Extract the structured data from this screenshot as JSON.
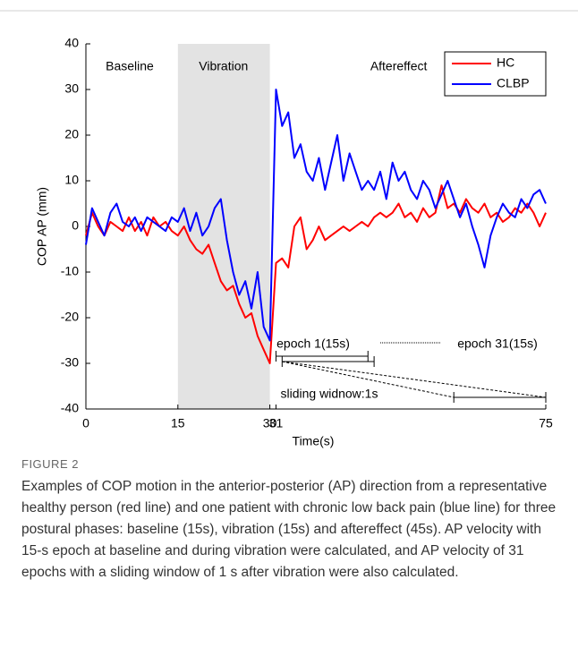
{
  "chart_data": {
    "type": "line",
    "x": [
      0,
      1,
      2,
      3,
      4,
      5,
      6,
      7,
      8,
      9,
      10,
      11,
      12,
      13,
      14,
      15,
      16,
      17,
      18,
      19,
      20,
      21,
      22,
      23,
      24,
      25,
      26,
      27,
      28,
      29,
      30,
      31,
      32,
      33,
      34,
      35,
      36,
      37,
      38,
      39,
      40,
      41,
      42,
      43,
      44,
      45,
      46,
      47,
      48,
      49,
      50,
      51,
      52,
      53,
      54,
      55,
      56,
      57,
      58,
      59,
      60,
      61,
      62,
      63,
      64,
      65,
      66,
      67,
      68,
      69,
      70,
      71,
      72,
      73,
      74,
      75
    ],
    "series": [
      {
        "name": "HC",
        "color": "#ff0000",
        "values": [
          -2,
          3,
          0,
          -2,
          1,
          0,
          -1,
          2,
          -1,
          1,
          -2,
          2,
          0,
          1,
          -1,
          -2,
          0,
          -3,
          -5,
          -6,
          -4,
          -8,
          -12,
          -14,
          -13,
          -17,
          -20,
          -19,
          -24,
          -27,
          -30,
          -8,
          -7,
          -9,
          0,
          2,
          -5,
          -3,
          0,
          -3,
          -2,
          -1,
          0,
          -1,
          0,
          1,
          0,
          2,
          3,
          2,
          3,
          5,
          2,
          3,
          1,
          4,
          2,
          3,
          9,
          4,
          5,
          3,
          6,
          4,
          3,
          5,
          2,
          3,
          1,
          2,
          4,
          3,
          5,
          3,
          0,
          3
        ]
      },
      {
        "name": "CLBP",
        "color": "#0000ff",
        "values": [
          -4,
          4,
          1,
          -2,
          3,
          5,
          1,
          0,
          2,
          -1,
          2,
          1,
          0,
          -1,
          2,
          1,
          4,
          -1,
          3,
          -2,
          0,
          4,
          6,
          -3,
          -10,
          -15,
          -12,
          -18,
          -10,
          -22,
          -25,
          30,
          22,
          25,
          15,
          18,
          12,
          10,
          15,
          8,
          14,
          20,
          10,
          16,
          12,
          8,
          10,
          8,
          12,
          6,
          14,
          10,
          12,
          8,
          6,
          10,
          8,
          4,
          7,
          10,
          6,
          2,
          5,
          0,
          -4,
          -9,
          -2,
          2,
          5,
          3,
          2,
          6,
          4,
          7,
          8,
          5
        ]
      }
    ],
    "xlabel": "Time(s)",
    "ylabel": "COP AP (mm)",
    "xlim": [
      0,
      75
    ],
    "ylim": [
      -40,
      40
    ],
    "xticks": [
      0,
      15,
      30,
      31,
      75
    ],
    "yticks": [
      -40,
      -30,
      -20,
      -10,
      0,
      10,
      20,
      30,
      40
    ],
    "shade": [
      15,
      30
    ],
    "phases": [
      "Baseline",
      "Vibration",
      "Aftereffect"
    ],
    "epochs": [
      [
        31,
        46
      ],
      [
        32,
        47
      ],
      [
        60,
        75
      ]
    ],
    "annotations": [
      "epoch 1(15s)",
      "epoch 31(15s)",
      "sliding widnow:1s"
    ],
    "legend": "upper right"
  },
  "caption": {
    "label": "FIGURE 2",
    "text": "Examples of COP motion in the anterior-posterior (AP) direction from a representative healthy person (red line) and one patient with chronic low back pain (blue line) for three postural phases: baseline (15s), vibration (15s) and aftereffect (45s). AP velocity with 15-s epoch at baseline and during vibration were calculated, and AP velocity of 31 epochs with a sliding window of 1 s after vibration were also calculated."
  }
}
